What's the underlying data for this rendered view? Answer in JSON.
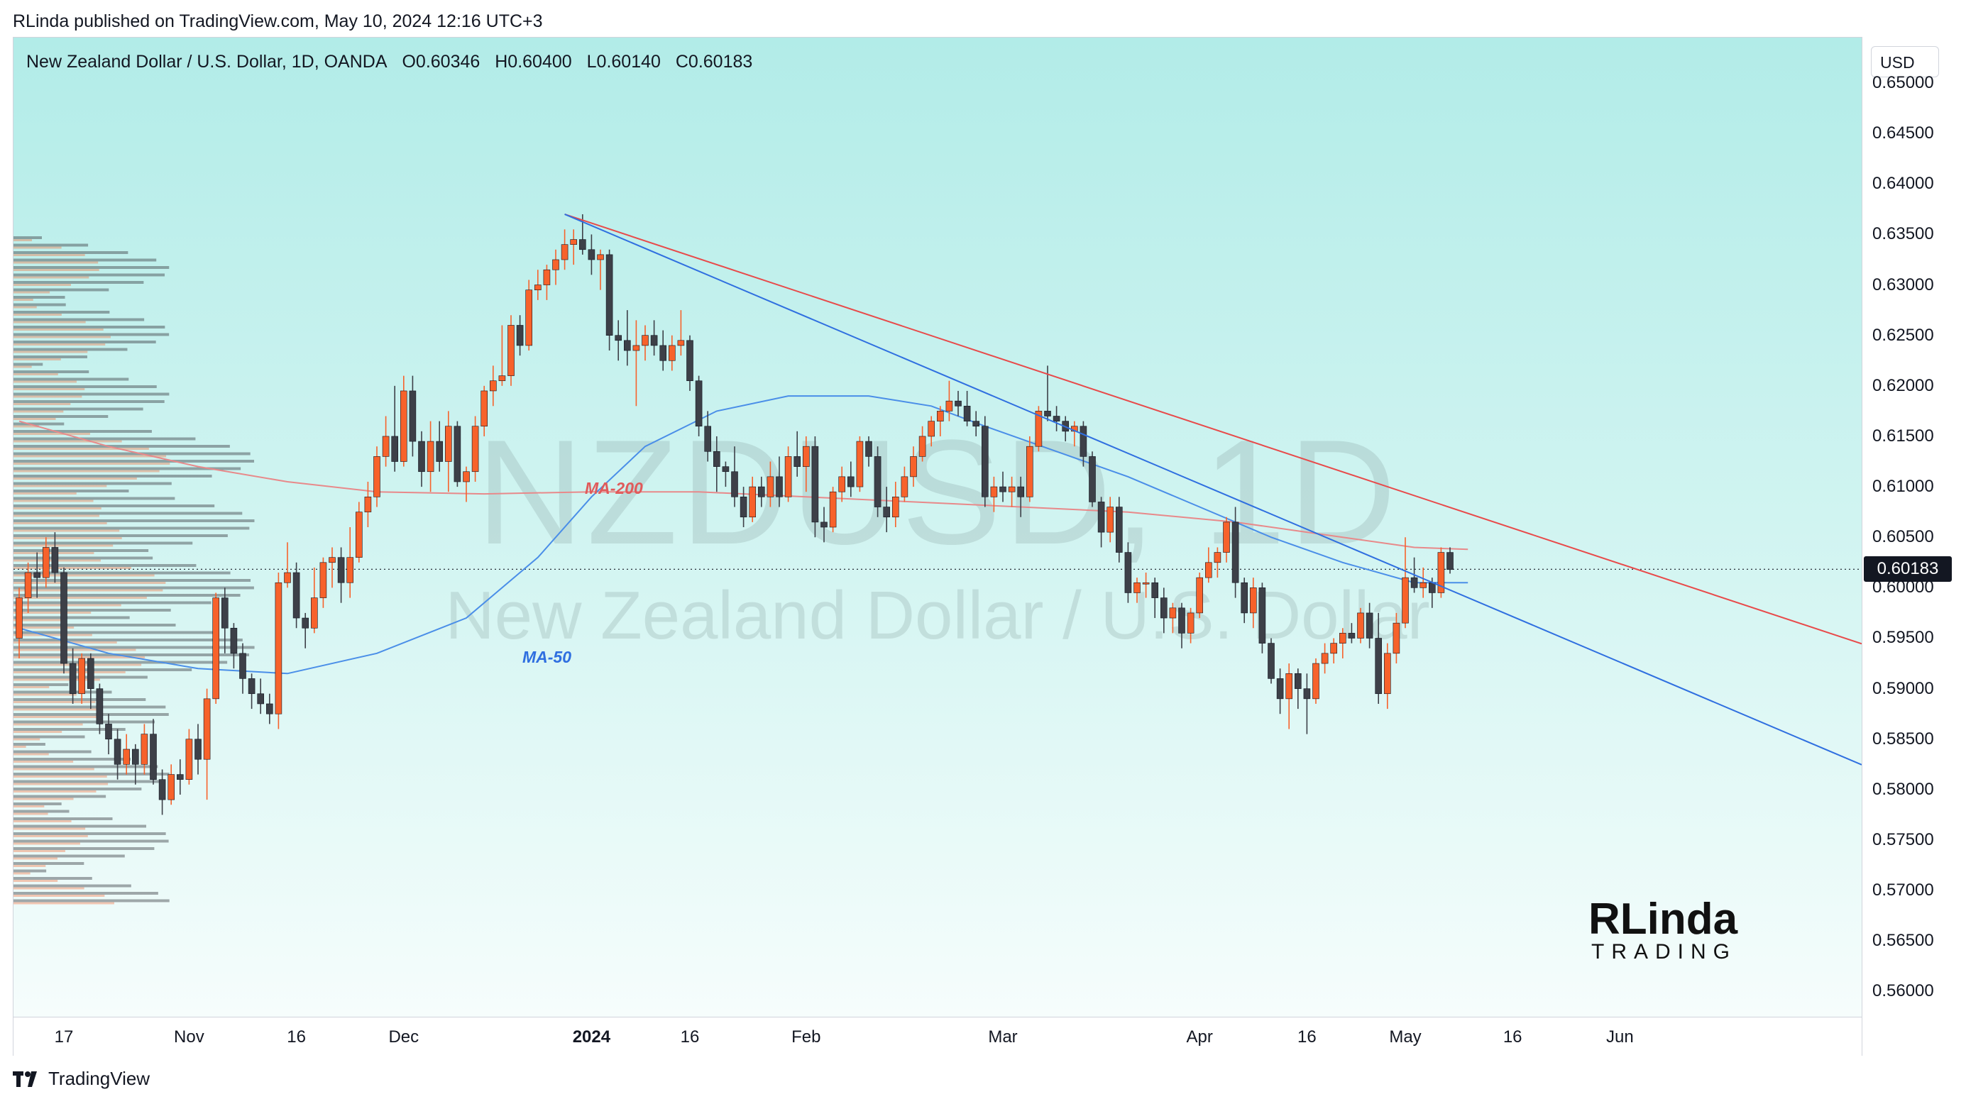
{
  "publish_line": "RLinda published on TradingView.com, May 10, 2024 12:16 UTC+3",
  "header": {
    "symbol": "New Zealand Dollar / U.S. Dollar, 1D, OANDA",
    "open": "O0.60346",
    "high": "H0.60400",
    "low": "L0.60140",
    "close": "C0.60183"
  },
  "watermark": {
    "ticker": "NZDUSD, 1D",
    "name": "New Zealand Dollar / U.S. Dollar"
  },
  "currency_button": "USD",
  "last_price_label": "0.60183",
  "footer_brand": "TradingView",
  "logo_text": "RLinda TRADING",
  "colors": {
    "up": "#f7622b",
    "down": "#3d4048",
    "ma50": "#4a8ee8",
    "ma200": "#e8898a",
    "trend_red": "#e84a4a",
    "trend_blue": "#2f6fe0"
  },
  "chart_data": {
    "type": "candlestick",
    "ylim": [
      0.5575,
      0.6545
    ],
    "price_ticks": [
      "0.65000",
      "0.64500",
      "0.64000",
      "0.63500",
      "0.63000",
      "0.62500",
      "0.62000",
      "0.61500",
      "0.61000",
      "0.60500",
      "0.60000",
      "0.59500",
      "0.59000",
      "0.58500",
      "0.58000",
      "0.57500",
      "0.57000",
      "0.56500",
      "0.56000"
    ],
    "time_labels": [
      {
        "label": "17",
        "bold": false,
        "idx": 5
      },
      {
        "label": "Nov",
        "bold": false,
        "idx": 19
      },
      {
        "label": "16",
        "bold": false,
        "idx": 31
      },
      {
        "label": "Dec",
        "bold": false,
        "idx": 43
      },
      {
        "label": "2024",
        "bold": true,
        "idx": 64
      },
      {
        "label": "16",
        "bold": false,
        "idx": 75
      },
      {
        "label": "Feb",
        "bold": false,
        "idx": 88
      },
      {
        "label": "Mar",
        "bold": false,
        "idx": 110
      },
      {
        "label": "Apr",
        "bold": false,
        "idx": 132
      },
      {
        "label": "16",
        "bold": false,
        "idx": 144
      },
      {
        "label": "May",
        "bold": false,
        "idx": 155
      },
      {
        "label": "16",
        "bold": false,
        "idx": 167
      },
      {
        "label": "Jun",
        "bold": false,
        "idx": 179
      }
    ],
    "candles": [
      [
        0.595,
        0.6,
        0.593,
        0.599
      ],
      [
        0.599,
        0.6025,
        0.5975,
        0.6015
      ],
      [
        0.6015,
        0.6035,
        0.599,
        0.601
      ],
      [
        0.601,
        0.605,
        0.6,
        0.604
      ],
      [
        0.604,
        0.6055,
        0.6005,
        0.6015
      ],
      [
        0.6015,
        0.602,
        0.5915,
        0.5925
      ],
      [
        0.5925,
        0.594,
        0.5885,
        0.5895
      ],
      [
        0.5895,
        0.5935,
        0.5885,
        0.593
      ],
      [
        0.593,
        0.5935,
        0.588,
        0.59
      ],
      [
        0.59,
        0.5905,
        0.5855,
        0.5865
      ],
      [
        0.5865,
        0.5875,
        0.5835,
        0.585
      ],
      [
        0.585,
        0.586,
        0.581,
        0.5825
      ],
      [
        0.5825,
        0.5855,
        0.5815,
        0.584
      ],
      [
        0.584,
        0.5845,
        0.5805,
        0.5825
      ],
      [
        0.5825,
        0.5865,
        0.5815,
        0.5855
      ],
      [
        0.5855,
        0.587,
        0.5805,
        0.581
      ],
      [
        0.581,
        0.582,
        0.5775,
        0.579
      ],
      [
        0.579,
        0.5825,
        0.5785,
        0.5815
      ],
      [
        0.5815,
        0.583,
        0.5795,
        0.581
      ],
      [
        0.581,
        0.586,
        0.5805,
        0.585
      ],
      [
        0.585,
        0.5865,
        0.5815,
        0.583
      ],
      [
        0.583,
        0.59,
        0.579,
        0.589
      ],
      [
        0.589,
        0.5995,
        0.5885,
        0.599
      ],
      [
        0.599,
        0.6,
        0.5935,
        0.596
      ],
      [
        0.596,
        0.5965,
        0.592,
        0.5935
      ],
      [
        0.5935,
        0.5945,
        0.5895,
        0.591
      ],
      [
        0.591,
        0.5915,
        0.588,
        0.5895
      ],
      [
        0.5895,
        0.591,
        0.5875,
        0.5885
      ],
      [
        0.5885,
        0.5895,
        0.5865,
        0.5875
      ],
      [
        0.5875,
        0.6015,
        0.586,
        0.6005
      ],
      [
        0.6005,
        0.6045,
        0.6,
        0.6015
      ],
      [
        0.6015,
        0.6025,
        0.596,
        0.597
      ],
      [
        0.597,
        0.5975,
        0.594,
        0.596
      ],
      [
        0.596,
        0.602,
        0.5955,
        0.599
      ],
      [
        0.599,
        0.603,
        0.598,
        0.6025
      ],
      [
        0.6025,
        0.604,
        0.6,
        0.603
      ],
      [
        0.603,
        0.604,
        0.5985,
        0.6005
      ],
      [
        0.6005,
        0.606,
        0.599,
        0.603
      ],
      [
        0.603,
        0.6085,
        0.6025,
        0.6075
      ],
      [
        0.6075,
        0.6105,
        0.606,
        0.609
      ],
      [
        0.609,
        0.614,
        0.608,
        0.613
      ],
      [
        0.613,
        0.617,
        0.612,
        0.615
      ],
      [
        0.615,
        0.62,
        0.6115,
        0.6125
      ],
      [
        0.6125,
        0.621,
        0.612,
        0.6195
      ],
      [
        0.6195,
        0.621,
        0.613,
        0.6145
      ],
      [
        0.6145,
        0.6155,
        0.61,
        0.6115
      ],
      [
        0.6115,
        0.6165,
        0.6095,
        0.6145
      ],
      [
        0.6145,
        0.6165,
        0.6115,
        0.6125
      ],
      [
        0.6125,
        0.6175,
        0.6095,
        0.616
      ],
      [
        0.616,
        0.6165,
        0.61,
        0.6105
      ],
      [
        0.6105,
        0.612,
        0.6085,
        0.6115
      ],
      [
        0.6115,
        0.617,
        0.6105,
        0.616
      ],
      [
        0.616,
        0.62,
        0.615,
        0.6195
      ],
      [
        0.6195,
        0.622,
        0.618,
        0.6205
      ],
      [
        0.6205,
        0.626,
        0.62,
        0.621
      ],
      [
        0.621,
        0.627,
        0.62,
        0.626
      ],
      [
        0.626,
        0.627,
        0.623,
        0.624
      ],
      [
        0.624,
        0.6305,
        0.6235,
        0.6295
      ],
      [
        0.6295,
        0.6315,
        0.6285,
        0.63
      ],
      [
        0.63,
        0.632,
        0.6285,
        0.6315
      ],
      [
        0.6315,
        0.6335,
        0.63,
        0.6325
      ],
      [
        0.6325,
        0.6355,
        0.6315,
        0.634
      ],
      [
        0.634,
        0.6355,
        0.632,
        0.6345
      ],
      [
        0.6345,
        0.637,
        0.633,
        0.6335
      ],
      [
        0.6335,
        0.635,
        0.631,
        0.6325
      ],
      [
        0.6325,
        0.6335,
        0.6295,
        0.633
      ],
      [
        0.633,
        0.6335,
        0.6235,
        0.625
      ],
      [
        0.625,
        0.6265,
        0.6225,
        0.6245
      ],
      [
        0.6245,
        0.6275,
        0.622,
        0.6235
      ],
      [
        0.6235,
        0.6265,
        0.618,
        0.624
      ],
      [
        0.624,
        0.626,
        0.6225,
        0.625
      ],
      [
        0.625,
        0.6265,
        0.623,
        0.624
      ],
      [
        0.624,
        0.6255,
        0.6215,
        0.6225
      ],
      [
        0.6225,
        0.625,
        0.6215,
        0.624
      ],
      [
        0.624,
        0.6275,
        0.623,
        0.6245
      ],
      [
        0.6245,
        0.625,
        0.6195,
        0.6205
      ],
      [
        0.6205,
        0.621,
        0.615,
        0.616
      ],
      [
        0.616,
        0.6175,
        0.6125,
        0.6135
      ],
      [
        0.6135,
        0.615,
        0.6095,
        0.612
      ],
      [
        0.612,
        0.6125,
        0.61,
        0.6115
      ],
      [
        0.6115,
        0.614,
        0.608,
        0.609
      ],
      [
        0.609,
        0.61,
        0.606,
        0.607
      ],
      [
        0.607,
        0.611,
        0.6065,
        0.61
      ],
      [
        0.61,
        0.611,
        0.608,
        0.609
      ],
      [
        0.609,
        0.6125,
        0.608,
        0.611
      ],
      [
        0.611,
        0.613,
        0.608,
        0.609
      ],
      [
        0.609,
        0.614,
        0.6085,
        0.613
      ],
      [
        0.613,
        0.6155,
        0.611,
        0.612
      ],
      [
        0.612,
        0.615,
        0.6095,
        0.614
      ],
      [
        0.614,
        0.615,
        0.605,
        0.6065
      ],
      [
        0.6065,
        0.608,
        0.6045,
        0.606
      ],
      [
        0.606,
        0.61,
        0.6055,
        0.6095
      ],
      [
        0.6095,
        0.612,
        0.6085,
        0.611
      ],
      [
        0.611,
        0.6125,
        0.609,
        0.61
      ],
      [
        0.61,
        0.615,
        0.6095,
        0.6145
      ],
      [
        0.6145,
        0.615,
        0.612,
        0.613
      ],
      [
        0.613,
        0.614,
        0.607,
        0.608
      ],
      [
        0.608,
        0.61,
        0.6055,
        0.607
      ],
      [
        0.607,
        0.6105,
        0.606,
        0.609
      ],
      [
        0.609,
        0.612,
        0.6085,
        0.611
      ],
      [
        0.611,
        0.614,
        0.61,
        0.613
      ],
      [
        0.613,
        0.616,
        0.6125,
        0.615
      ],
      [
        0.615,
        0.617,
        0.614,
        0.6165
      ],
      [
        0.6165,
        0.618,
        0.615,
        0.6175
      ],
      [
        0.6175,
        0.6205,
        0.6165,
        0.6185
      ],
      [
        0.6185,
        0.6195,
        0.617,
        0.618
      ],
      [
        0.618,
        0.6195,
        0.616,
        0.6165
      ],
      [
        0.6165,
        0.6175,
        0.615,
        0.616
      ],
      [
        0.616,
        0.617,
        0.608,
        0.609
      ],
      [
        0.609,
        0.611,
        0.6075,
        0.61
      ],
      [
        0.61,
        0.6115,
        0.6085,
        0.6095
      ],
      [
        0.6095,
        0.611,
        0.608,
        0.61
      ],
      [
        0.61,
        0.611,
        0.607,
        0.609
      ],
      [
        0.609,
        0.615,
        0.6085,
        0.614
      ],
      [
        0.614,
        0.618,
        0.6135,
        0.6175
      ],
      [
        0.6175,
        0.622,
        0.6165,
        0.617
      ],
      [
        0.617,
        0.618,
        0.6155,
        0.6165
      ],
      [
        0.6165,
        0.617,
        0.6145,
        0.6155
      ],
      [
        0.6155,
        0.6165,
        0.614,
        0.616
      ],
      [
        0.616,
        0.6165,
        0.612,
        0.613
      ],
      [
        0.613,
        0.6135,
        0.608,
        0.6085
      ],
      [
        0.6085,
        0.609,
        0.604,
        0.6055
      ],
      [
        0.6055,
        0.609,
        0.6045,
        0.608
      ],
      [
        0.608,
        0.609,
        0.6025,
        0.6035
      ],
      [
        0.6035,
        0.6045,
        0.5985,
        0.5995
      ],
      [
        0.5995,
        0.601,
        0.5985,
        0.6005
      ],
      [
        0.6005,
        0.6015,
        0.599,
        0.6005
      ],
      [
        0.6005,
        0.601,
        0.597,
        0.599
      ],
      [
        0.599,
        0.6,
        0.5955,
        0.597
      ],
      [
        0.597,
        0.5985,
        0.5955,
        0.598
      ],
      [
        0.598,
        0.5985,
        0.594,
        0.5955
      ],
      [
        0.5955,
        0.598,
        0.5945,
        0.5975
      ],
      [
        0.5975,
        0.6015,
        0.597,
        0.601
      ],
      [
        0.601,
        0.604,
        0.6005,
        0.6025
      ],
      [
        0.6025,
        0.604,
        0.601,
        0.6035
      ],
      [
        0.6035,
        0.607,
        0.6025,
        0.6065
      ],
      [
        0.6065,
        0.608,
        0.599,
        0.6005
      ],
      [
        0.6005,
        0.601,
        0.5965,
        0.5975
      ],
      [
        0.5975,
        0.601,
        0.596,
        0.6
      ],
      [
        0.6,
        0.6005,
        0.5935,
        0.5945
      ],
      [
        0.5945,
        0.595,
        0.5905,
        0.591
      ],
      [
        0.591,
        0.592,
        0.5875,
        0.589
      ],
      [
        0.589,
        0.5925,
        0.586,
        0.5915
      ],
      [
        0.5915,
        0.592,
        0.588,
        0.59
      ],
      [
        0.59,
        0.5915,
        0.5855,
        0.589
      ],
      [
        0.589,
        0.593,
        0.5885,
        0.5925
      ],
      [
        0.5925,
        0.5945,
        0.5915,
        0.5935
      ],
      [
        0.5935,
        0.595,
        0.5925,
        0.5945
      ],
      [
        0.5945,
        0.596,
        0.593,
        0.5955
      ],
      [
        0.5955,
        0.5965,
        0.5945,
        0.595
      ],
      [
        0.595,
        0.598,
        0.5945,
        0.5975
      ],
      [
        0.5975,
        0.5985,
        0.594,
        0.595
      ],
      [
        0.595,
        0.5975,
        0.5885,
        0.5895
      ],
      [
        0.5895,
        0.5945,
        0.588,
        0.5935
      ],
      [
        0.5935,
        0.5975,
        0.5925,
        0.5965
      ],
      [
        0.5965,
        0.605,
        0.596,
        0.601
      ],
      [
        0.601,
        0.603,
        0.5995,
        0.6
      ],
      [
        0.6,
        0.602,
        0.599,
        0.6005
      ],
      [
        0.6005,
        0.601,
        0.598,
        0.5995
      ],
      [
        0.5995,
        0.604,
        0.599,
        0.6035
      ],
      [
        0.6035,
        0.604,
        0.6014,
        0.6018
      ]
    ],
    "ma50": [
      [
        0,
        0.596
      ],
      [
        10,
        0.5935
      ],
      [
        20,
        0.592
      ],
      [
        30,
        0.5915
      ],
      [
        40,
        0.5935
      ],
      [
        50,
        0.597
      ],
      [
        58,
        0.603
      ],
      [
        64,
        0.609
      ],
      [
        70,
        0.614
      ],
      [
        78,
        0.6175
      ],
      [
        86,
        0.619
      ],
      [
        95,
        0.619
      ],
      [
        102,
        0.618
      ],
      [
        108,
        0.616
      ],
      [
        116,
        0.6135
      ],
      [
        124,
        0.611
      ],
      [
        132,
        0.608
      ],
      [
        140,
        0.605
      ],
      [
        148,
        0.6025
      ],
      [
        156,
        0.6005
      ],
      [
        162,
        0.6005
      ]
    ],
    "ma200": [
      [
        0,
        0.6165
      ],
      [
        10,
        0.614
      ],
      [
        20,
        0.612
      ],
      [
        30,
        0.6105
      ],
      [
        40,
        0.6095
      ],
      [
        52,
        0.6093
      ],
      [
        64,
        0.6095
      ],
      [
        76,
        0.6095
      ],
      [
        88,
        0.609
      ],
      [
        100,
        0.6085
      ],
      [
        112,
        0.608
      ],
      [
        124,
        0.6075
      ],
      [
        136,
        0.6065
      ],
      [
        148,
        0.605
      ],
      [
        156,
        0.604
      ],
      [
        162,
        0.6038
      ]
    ],
    "trendlines": [
      {
        "color": "red",
        "from": [
          61,
          0.637
        ],
        "to": [
          182,
          0.6015
        ]
      },
      {
        "color": "blue",
        "from": [
          61,
          0.637
        ],
        "to": [
          182,
          0.5915
        ]
      }
    ],
    "labels": [
      {
        "text": "MA-200",
        "color": "#e05a5a",
        "at": [
          55,
          0.6115
        ]
      },
      {
        "text": "MA-50",
        "color": "#2f6fe0",
        "at": [
          50,
          0.595
        ]
      }
    ],
    "last_price": 0.60183
  }
}
